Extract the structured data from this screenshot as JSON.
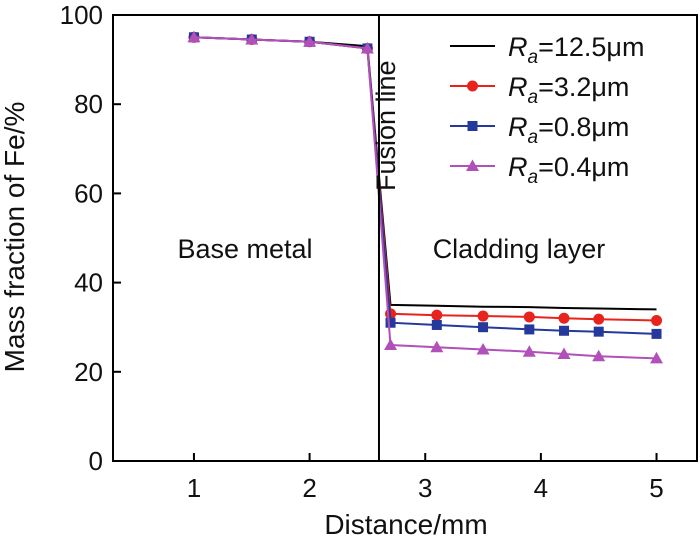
{
  "chart_data": {
    "type": "line",
    "title": "",
    "xlabel": "Distance/mm",
    "ylabel": "Mass fraction of Fe/%",
    "xlim": [
      0.3,
      5.35
    ],
    "ylim": [
      0,
      100
    ],
    "xticks": [
      1,
      2,
      3,
      4,
      5
    ],
    "yticks": [
      0,
      20,
      40,
      60,
      80,
      100
    ],
    "grid": false,
    "legend_position": "top-right",
    "vertical_line": {
      "x": 2.6,
      "label": "Fusion line"
    },
    "region_labels": {
      "left": "Base metal",
      "right": "Cladding layer"
    },
    "legend_prefix": "R",
    "legend_subscript": "a",
    "series": [
      {
        "name": "Ra=12.5μm",
        "legend_value": "=12.5μm",
        "color": "#000000",
        "marker": "none",
        "x": [
          1,
          1.5,
          2,
          2.5,
          2.7,
          3.1,
          3.5,
          3.9,
          4.2,
          4.5,
          5
        ],
        "y": [
          95,
          94.5,
          94,
          93,
          35,
          34.8,
          34.6,
          34.5,
          34.3,
          34.2,
          34
        ]
      },
      {
        "name": "Ra=3.2μm",
        "legend_value": "=3.2μm",
        "color": "#e8231d",
        "marker": "circle",
        "x": [
          1,
          1.5,
          2,
          2.5,
          2.7,
          3.1,
          3.5,
          3.9,
          4.2,
          4.5,
          5
        ],
        "y": [
          95,
          94.5,
          94,
          92.5,
          33,
          32.7,
          32.5,
          32.3,
          32,
          31.8,
          31.5
        ]
      },
      {
        "name": "Ra=0.8μm",
        "legend_value": "=0.8μm",
        "color": "#25389b",
        "marker": "square",
        "x": [
          1,
          1.5,
          2,
          2.5,
          2.7,
          3.1,
          3.5,
          3.9,
          4.2,
          4.5,
          5
        ],
        "y": [
          95,
          94.5,
          94,
          92.5,
          31,
          30.5,
          30,
          29.5,
          29.2,
          29,
          28.5
        ]
      },
      {
        "name": "Ra=0.4μm",
        "legend_value": "=0.4μm",
        "color": "#b050b8",
        "marker": "triangle",
        "x": [
          1,
          1.5,
          2,
          2.5,
          2.7,
          3.1,
          3.5,
          3.9,
          4.2,
          4.5,
          5
        ],
        "y": [
          95,
          94.5,
          94,
          92.5,
          26,
          25.5,
          25,
          24.5,
          24,
          23.5,
          23
        ]
      }
    ]
  }
}
